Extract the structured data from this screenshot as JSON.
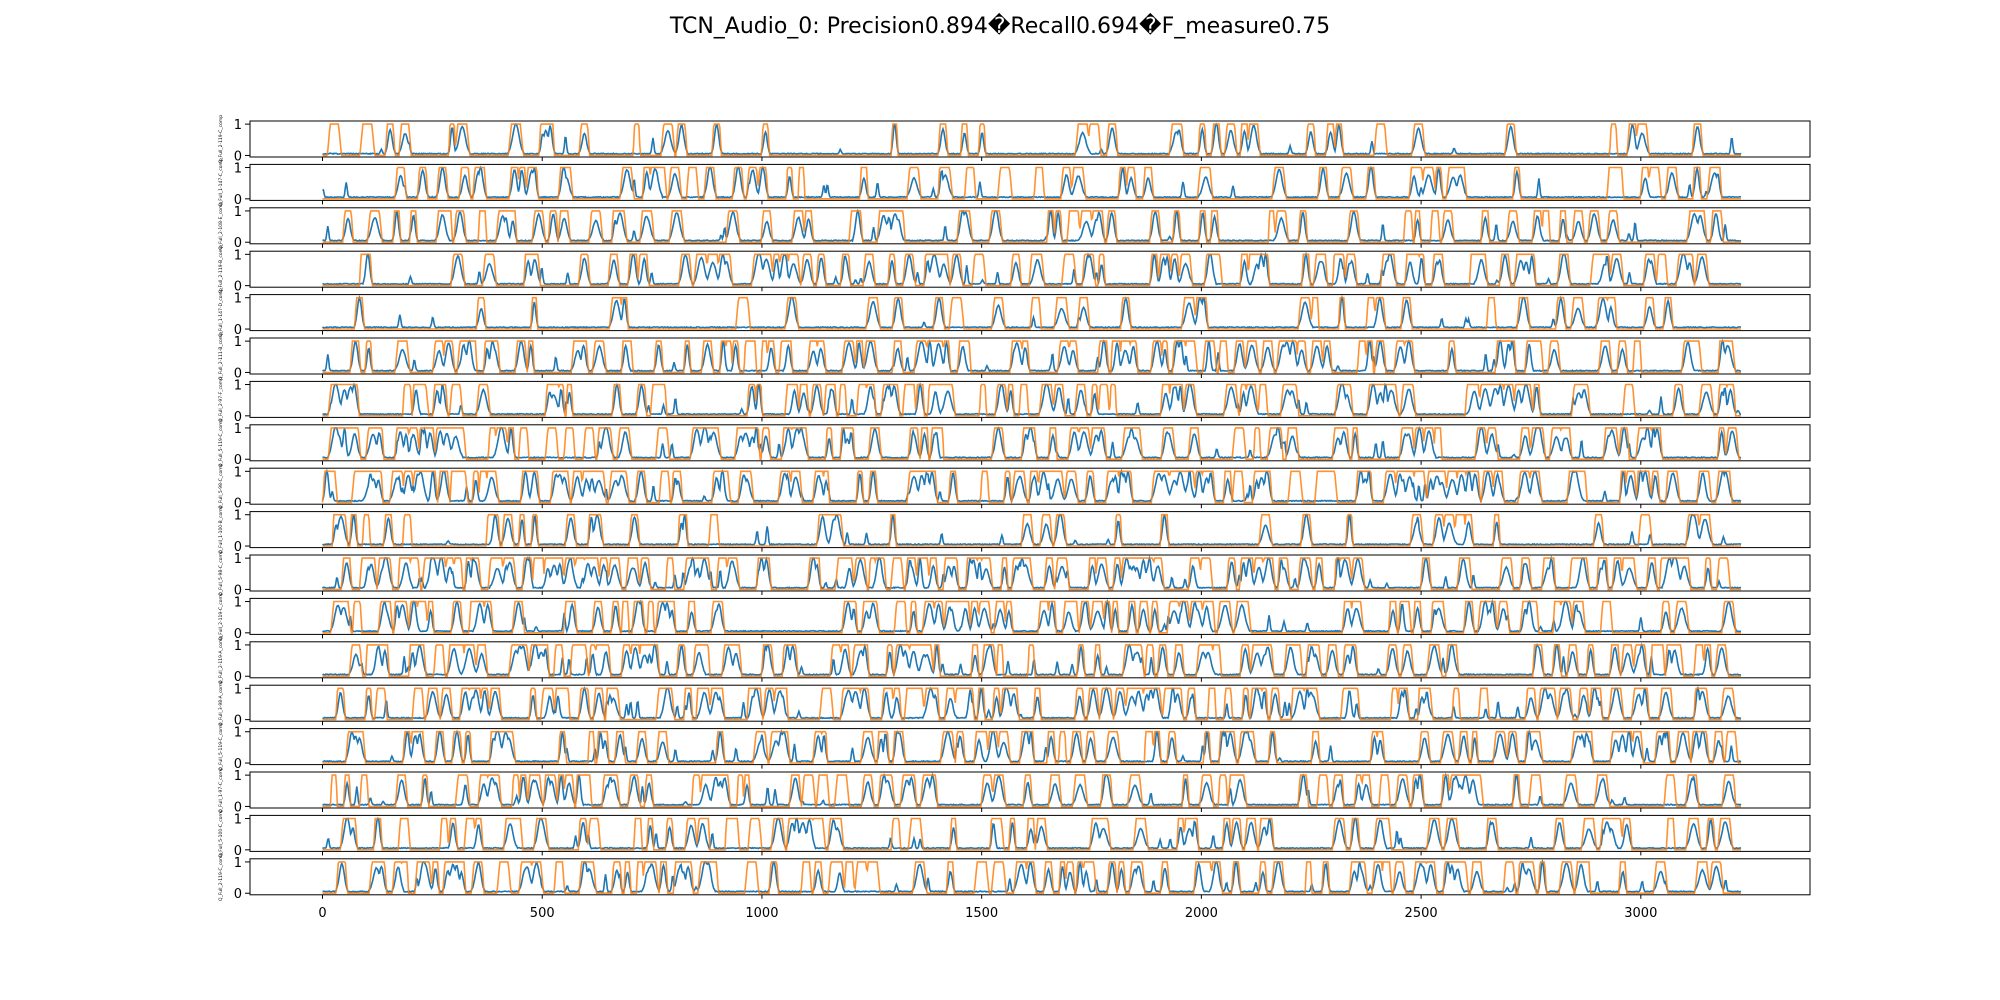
{
  "chart_data": {
    "type": "line",
    "title": "TCN_Audio_0: Precision0.894�Recall0.694�F_measure0.75",
    "xlabel": "",
    "ylabel": "",
    "xlim": [
      -165,
      3385
    ],
    "ylim": [
      -0.05,
      1.1
    ],
    "x_ticks": [
      0,
      500,
      1000,
      1500,
      2000,
      2500,
      3000
    ],
    "y_ticks": [
      0,
      1
    ],
    "grid": false,
    "legend": "none",
    "colors": {
      "prediction": "#1f77b4",
      "ground_truth": "#ff7f0e"
    },
    "series_length": 3230,
    "panels": [
      {
        "label": "Q_Full_2-119-C_comp",
        "estimated_peaks": 40
      },
      {
        "label": "Q_Full_1-147-C_comp",
        "estimated_peaks": 60
      },
      {
        "label": "Q_Full_2-108-E_comp",
        "estimated_peaks": 70
      },
      {
        "label": "Q_Full_2-119-B_comp",
        "estimated_peaks": 90
      },
      {
        "label": "Q_Full_1-147-D_comp",
        "estimated_peaks": 35
      },
      {
        "label": "Q_Full_2-111-B_comp",
        "estimated_peaks": 100
      },
      {
        "label": "Q_Full_2-97-F_comp",
        "estimated_peaks": 95
      },
      {
        "label": "Q_Full_5-119-C_comp",
        "estimated_peaks": 110
      },
      {
        "label": "Q_Full_5-98-C_comp",
        "estimated_peaks": 140
      },
      {
        "label": "Q_Full_1-100-B_comp",
        "estimated_peaks": 45
      },
      {
        "label": "Q_Full_5-98-C_comp",
        "estimated_peaks": 140
      },
      {
        "label": "Q_Full_2-119-C_comp",
        "estimated_peaks": 100
      },
      {
        "label": "Q_Full_2-119-A_comp",
        "estimated_peaks": 110
      },
      {
        "label": "Q_Full_3-98-A_comp",
        "estimated_peaks": 120
      },
      {
        "label": "Q_Full_5-119-C_comp",
        "estimated_peaks": 95
      },
      {
        "label": "Q_Full_1-97-C_comp",
        "estimated_peaks": 90
      },
      {
        "label": "Q_Full_5-100-C_comp",
        "estimated_peaks": 70
      },
      {
        "label": "Q_Full_2-119-C_comp",
        "estimated_peaks": 105
      }
    ]
  }
}
